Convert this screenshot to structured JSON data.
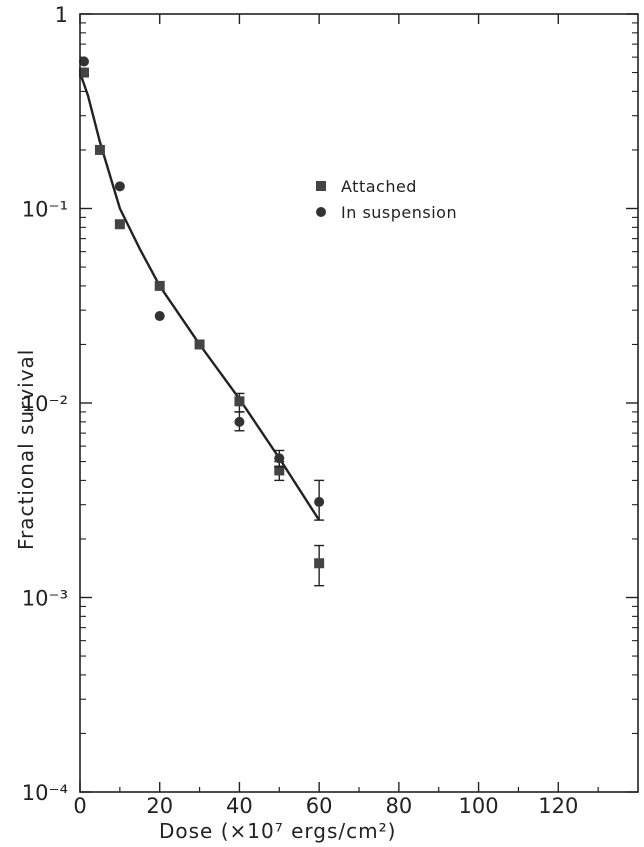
{
  "chart_data": {
    "type": "scatter",
    "xlabel": "Dose (×10⁷ ergs/cm²)",
    "ylabel": "Fractional survival",
    "x_ticks": [
      "0",
      "20",
      "40",
      "60",
      "80",
      "100",
      "120"
    ],
    "y_ticks": [
      "1",
      "10⁻¹",
      "10⁻²",
      "10⁻³",
      "10⁻⁴"
    ],
    "xlim": [
      0,
      140
    ],
    "ylim": [
      0.0001,
      1
    ],
    "y_scale": "log",
    "legend_position": "upper-center",
    "series": [
      {
        "name": "Attached",
        "marker": "square",
        "color": "#444444",
        "points": [
          {
            "x": 1,
            "y": 0.5
          },
          {
            "x": 5,
            "y": 0.2
          },
          {
            "x": 10,
            "y": 0.083
          },
          {
            "x": 20,
            "y": 0.04
          },
          {
            "x": 30,
            "y": 0.02
          },
          {
            "x": 40,
            "y": 0.0102,
            "err": [
              0.009,
              0.0112
            ]
          },
          {
            "x": 50,
            "y": 0.0045,
            "err": [
              0.004,
              0.005
            ]
          },
          {
            "x": 60,
            "y": 0.0015,
            "err": [
              0.00115,
              0.00185
            ]
          }
        ]
      },
      {
        "name": "In suspension",
        "marker": "circle",
        "color": "#333333",
        "points": [
          {
            "x": 1,
            "y": 0.57
          },
          {
            "x": 10,
            "y": 0.13
          },
          {
            "x": 20,
            "y": 0.028
          },
          {
            "x": 40,
            "y": 0.008,
            "err": [
              0.0072,
              0.009
            ]
          },
          {
            "x": 50,
            "y": 0.0052,
            "err": [
              0.0047,
              0.0057
            ]
          },
          {
            "x": 60,
            "y": 0.0031,
            "err": [
              0.0025,
              0.004
            ]
          }
        ]
      }
    ],
    "fit_curve": {
      "points": [
        {
          "x": 0,
          "y": 0.5
        },
        {
          "x": 2,
          "y": 0.38
        },
        {
          "x": 5,
          "y": 0.22
        },
        {
          "x": 10,
          "y": 0.1
        },
        {
          "x": 15,
          "y": 0.062
        },
        {
          "x": 20,
          "y": 0.04
        },
        {
          "x": 30,
          "y": 0.02
        },
        {
          "x": 40,
          "y": 0.0105
        },
        {
          "x": 50,
          "y": 0.0052
        },
        {
          "x": 60,
          "y": 0.0025
        }
      ]
    }
  }
}
